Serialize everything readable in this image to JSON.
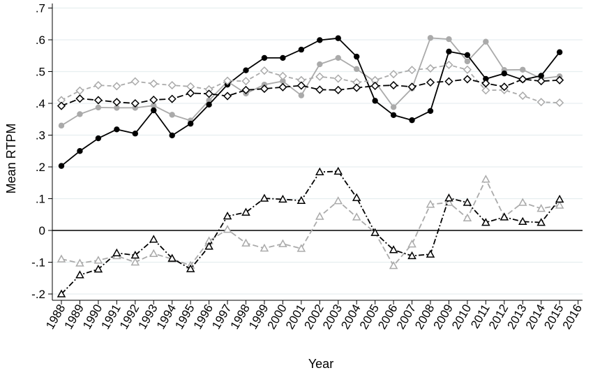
{
  "chart_data": {
    "type": "line",
    "title": "",
    "xlabel": "Year",
    "ylabel": "Mean RTPM",
    "xlim": [
      1988,
      2016
    ],
    "ylim": [
      -0.22,
      0.72
    ],
    "x_ticks": [
      1988,
      1989,
      1990,
      1991,
      1992,
      1993,
      1994,
      1995,
      1996,
      1997,
      1998,
      1999,
      2000,
      2001,
      2002,
      2003,
      2004,
      2005,
      2006,
      2007,
      2008,
      2009,
      2010,
      2011,
      2012,
      2013,
      2014,
      2015,
      2016
    ],
    "y_ticks": [
      {
        "value": -0.2,
        "label": "-.2"
      },
      {
        "value": -0.1,
        "label": "-.1"
      },
      {
        "value": 0,
        "label": "0"
      },
      {
        "value": 0.1,
        "label": ".1"
      },
      {
        "value": 0.2,
        "label": ".2"
      },
      {
        "value": 0.3,
        "label": ".3"
      },
      {
        "value": 0.4,
        "label": ".4"
      },
      {
        "value": 0.5,
        "label": ".5"
      },
      {
        "value": 0.6,
        "label": ".6"
      },
      {
        "value": 0.7,
        "label": ".7"
      }
    ],
    "grid": true,
    "reference_line_y": 0,
    "x": [
      1988,
      1989,
      1990,
      1991,
      1992,
      1993,
      1994,
      1995,
      1996,
      1997,
      1998,
      1999,
      2000,
      2001,
      2002,
      2003,
      2004,
      2005,
      2006,
      2007,
      2008,
      2009,
      2010,
      2011,
      2012,
      2013,
      2014,
      2015
    ],
    "series": [
      {
        "color": "#aaaaaa",
        "dash": "none",
        "marker": "circle-filled",
        "values": [
          0.33,
          0.366,
          0.387,
          0.386,
          0.386,
          0.393,
          0.364,
          0.346,
          0.409,
          0.469,
          0.431,
          0.459,
          0.47,
          0.425,
          0.523,
          0.543,
          0.508,
          0.468,
          0.388,
          0.447,
          0.606,
          0.602,
          0.532,
          0.594,
          0.505,
          0.506,
          0.478,
          0.485
        ]
      },
      {
        "color": "#000000",
        "dash": "none",
        "marker": "circle-filled",
        "values": [
          0.203,
          0.25,
          0.29,
          0.318,
          0.305,
          0.378,
          0.299,
          0.336,
          0.396,
          0.459,
          0.504,
          0.543,
          0.543,
          0.569,
          0.599,
          0.605,
          0.547,
          0.408,
          0.363,
          0.347,
          0.376,
          0.563,
          0.552,
          0.477,
          0.494,
          0.474,
          0.487,
          0.561
        ]
      },
      {
        "color": "#aaaaaa",
        "dash": "6,4",
        "marker": "diamond-open",
        "values": [
          0.41,
          0.44,
          0.457,
          0.454,
          0.469,
          0.462,
          0.457,
          0.453,
          0.444,
          0.471,
          0.47,
          0.503,
          0.486,
          0.473,
          0.484,
          0.478,
          0.466,
          0.473,
          0.492,
          0.505,
          0.51,
          0.521,
          0.506,
          0.441,
          0.442,
          0.424,
          0.404,
          0.402
        ]
      },
      {
        "color": "#000000",
        "dash": "9,4",
        "marker": "diamond-open",
        "values": [
          0.392,
          0.415,
          0.41,
          0.404,
          0.4,
          0.411,
          0.414,
          0.432,
          0.43,
          0.423,
          0.442,
          0.446,
          0.451,
          0.456,
          0.443,
          0.442,
          0.449,
          0.455,
          0.457,
          0.452,
          0.466,
          0.469,
          0.476,
          0.463,
          0.452,
          0.476,
          0.47,
          0.473
        ]
      },
      {
        "color": "#aaaaaa",
        "dash": "8,4",
        "marker": "triangle-open",
        "values": [
          -0.09,
          -0.103,
          -0.094,
          -0.08,
          -0.1,
          -0.073,
          -0.09,
          -0.11,
          -0.033,
          0.003,
          -0.04,
          -0.056,
          -0.042,
          -0.057,
          0.044,
          0.093,
          0.042,
          -0.007,
          -0.111,
          -0.043,
          0.082,
          0.088,
          0.039,
          0.161,
          0.043,
          0.088,
          0.069,
          0.079
        ]
      },
      {
        "color": "#000000",
        "dash": "8,3,2,3",
        "marker": "triangle-open",
        "values": [
          -0.2,
          -0.14,
          -0.122,
          -0.071,
          -0.078,
          -0.028,
          -0.088,
          -0.121,
          -0.05,
          0.045,
          0.057,
          0.101,
          0.098,
          0.094,
          0.184,
          0.186,
          0.103,
          -0.007,
          -0.061,
          -0.08,
          -0.075,
          0.102,
          0.088,
          0.025,
          0.042,
          0.028,
          0.025,
          0.098
        ]
      }
    ]
  }
}
